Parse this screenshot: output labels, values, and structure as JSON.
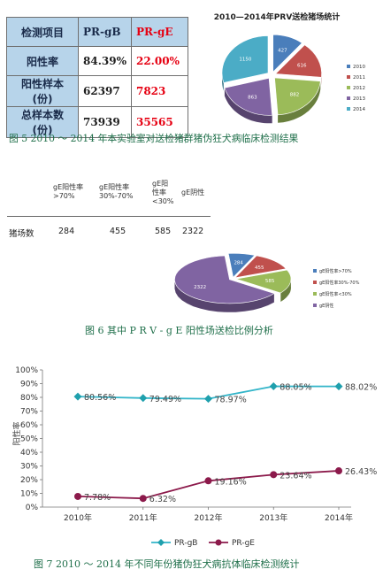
{
  "fig5": {
    "table": {
      "rows": [
        {
          "label": "检测项目",
          "gB": "PR-gB",
          "gE": "PR-gE"
        },
        {
          "label": "阳性率",
          "gB": "84.39%",
          "gE": "22.00%"
        },
        {
          "label": "阳性样本(份)",
          "gB": "62397",
          "gE": "7823"
        },
        {
          "label": "总样本数(份)",
          "gB": "73939",
          "gE": "35565"
        }
      ]
    },
    "caption": "图 5  2010 ～ 2014 年本实验室对送检猪群猪伪狂犬病临床检测结果"
  },
  "fig6": {
    "table": {
      "headers": [
        "gE阳性率\n>70%",
        "gE阳性率\n30%-70%",
        "gE阳\n性率\n<30%",
        "gE阴性"
      ],
      "row_label": "猪场数",
      "values": [
        "284",
        "455",
        "585",
        "2322"
      ]
    },
    "caption": "图 6  其中 P R V - g E  阳性场送检比例分析"
  },
  "fig7": {
    "caption": "图 7  2010 ～ 2014 年不同年份猪伪狂犬病抗体临床检测统计"
  },
  "chart_data": [
    {
      "type": "pie",
      "title": "2010—2014年PRV送检猪场统计",
      "labels": [
        "2010",
        "2011",
        "2012",
        "2013",
        "2014"
      ],
      "values": [
        427,
        616,
        882,
        863,
        1150
      ],
      "colors": [
        "#4a7ebb",
        "#c0504d",
        "#9bbb59",
        "#8064a2",
        "#4bacc6"
      ],
      "legend": "right"
    },
    {
      "type": "pie",
      "title": "",
      "labels": [
        "gE阳性率>70%",
        "gE阳性率30%-70%",
        "gE阳性率<30%",
        "gE阴性"
      ],
      "values": [
        284,
        455,
        585,
        2322
      ],
      "colors": [
        "#4a7ebb",
        "#c0504d",
        "#9bbb59",
        "#8064a2"
      ],
      "legend": "right"
    },
    {
      "type": "line",
      "title": "",
      "categories": [
        "2010年",
        "2011年",
        "2012年",
        "2013年",
        "2014年"
      ],
      "series": [
        {
          "name": "PR-gB",
          "values": [
            80.56,
            79.49,
            78.97,
            88.05,
            88.02
          ],
          "labels": [
            "80.56%",
            "79.49%",
            "78.97%",
            "88.05%",
            "88.02%"
          ],
          "color": "#33b5c9",
          "marker": "diamond"
        },
        {
          "name": "PR-gE",
          "values": [
            7.78,
            6.32,
            19.16,
            23.64,
            26.43
          ],
          "labels": [
            "7.78%",
            "6.32%",
            "19.16%",
            "23.64%",
            "26.43%"
          ],
          "color": "#8c1a4b",
          "marker": "circle"
        }
      ],
      "ylabel": "阳性率",
      "ylim": [
        0,
        100
      ],
      "yticks": [
        "0%",
        "10%",
        "20%",
        "30%",
        "40%",
        "50%",
        "60%",
        "70%",
        "80%",
        "90%",
        "100%"
      ],
      "grid": false,
      "legend": "bottom"
    }
  ]
}
